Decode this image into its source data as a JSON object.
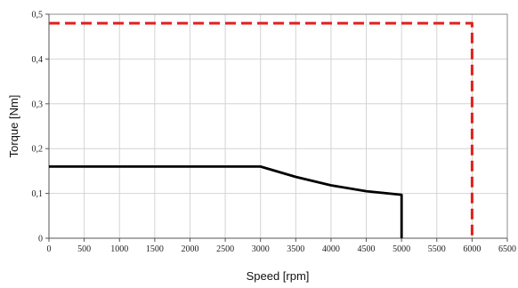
{
  "chart_data": {
    "type": "line",
    "title": "",
    "xlabel": "Speed [rpm]",
    "ylabel": "Torque [Nm]",
    "xlim": [
      0,
      6500
    ],
    "ylim": [
      0,
      0.5
    ],
    "x_ticks": [
      {
        "value": 0,
        "label": "0"
      },
      {
        "value": 500,
        "label": "500"
      },
      {
        "value": 1000,
        "label": "1000"
      },
      {
        "value": 1500,
        "label": "1500"
      },
      {
        "value": 2000,
        "label": "2000"
      },
      {
        "value": 2500,
        "label": "2500"
      },
      {
        "value": 3000,
        "label": "3000"
      },
      {
        "value": 3500,
        "label": "3500"
      },
      {
        "value": 4000,
        "label": "4000"
      },
      {
        "value": 4500,
        "label": "4500"
      },
      {
        "value": 5000,
        "label": "5000"
      },
      {
        "value": 5500,
        "label": "5500"
      },
      {
        "value": 6000,
        "label": "6000"
      },
      {
        "value": 6500,
        "label": "6500"
      }
    ],
    "y_ticks": [
      {
        "value": 0,
        "label": "0"
      },
      {
        "value": 0.1,
        "label": "0,1"
      },
      {
        "value": 0.2,
        "label": "0,2"
      },
      {
        "value": 0.3,
        "label": "0,3"
      },
      {
        "value": 0.4,
        "label": "0,4"
      },
      {
        "value": 0.5,
        "label": "0,5"
      }
    ],
    "grid": true,
    "legend": "none",
    "series": [
      {
        "style": "solid",
        "color": "#000000",
        "points": [
          {
            "x": 0,
            "y": 0.16
          },
          {
            "x": 3000,
            "y": 0.16
          },
          {
            "x": 3500,
            "y": 0.137
          },
          {
            "x": 4000,
            "y": 0.118
          },
          {
            "x": 4500,
            "y": 0.105
          },
          {
            "x": 5000,
            "y": 0.097
          },
          {
            "x": 5000,
            "y": 0
          }
        ]
      },
      {
        "style": "dashed",
        "color": "#e0201b",
        "points": [
          {
            "x": 0,
            "y": 0.48
          },
          {
            "x": 6000,
            "y": 0.48
          },
          {
            "x": 6000,
            "y": 0
          }
        ]
      }
    ]
  }
}
